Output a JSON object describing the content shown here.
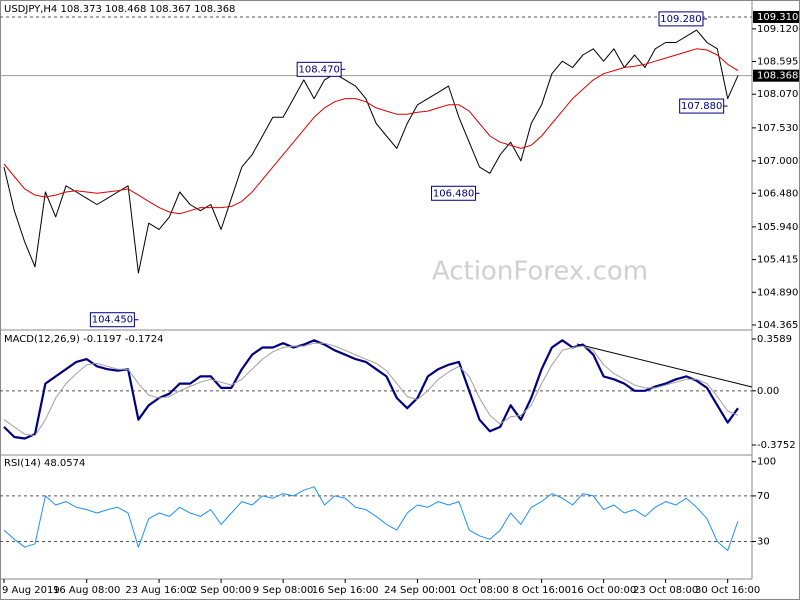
{
  "chart_data": [
    {
      "type": "line",
      "title": "USDJPY,H4  108.373 108.468 108.367 108.368",
      "watermark": "ActionForex.com",
      "ylim": [
        104.317,
        109.551
      ],
      "yticks": [
        {
          "value": 109.12,
          "label": "109.120"
        },
        108.595,
        {
          "value": 108.07,
          "label": "108.070"
        },
        {
          "value": 107.53,
          "label": "107.530"
        },
        {
          "value": 107,
          "label": "107.000"
        },
        {
          "value": 106.48,
          "label": "106.480"
        },
        {
          "value": 105.94,
          "label": "105.940"
        },
        105.415,
        {
          "value": 104.89,
          "label": "104.890"
        },
        104.365
      ],
      "levels": [
        {
          "value": 109.31,
          "label": "109.310",
          "dashed": true
        },
        {
          "value": 108.368,
          "label": "108.368",
          "dashed": false
        }
      ],
      "annotations": [
        {
          "x": 33,
          "value": 108.47,
          "label": "108.470"
        },
        {
          "x": 13,
          "value": 104.45,
          "label": "104.450"
        },
        {
          "x": 46,
          "value": 106.48,
          "label": "106.480"
        },
        {
          "x": 68,
          "value": 109.28,
          "label": "109.280"
        },
        {
          "x": 70,
          "value": 107.88,
          "label": "107.880"
        }
      ],
      "series": [
        {
          "color": "#000000",
          "width": 1,
          "values": [
            106.9,
            106.2,
            105.7,
            105.3,
            106.5,
            106.1,
            106.6,
            106.5,
            106.4,
            106.3,
            106.4,
            106.5,
            106.6,
            105.2,
            106.0,
            105.9,
            106.1,
            106.5,
            106.3,
            106.2,
            106.3,
            105.9,
            106.4,
            106.9,
            107.1,
            107.4,
            107.7,
            107.7,
            108.0,
            108.3,
            108.0,
            108.3,
            108.4,
            108.3,
            108.2,
            108.0,
            107.6,
            107.4,
            107.2,
            107.6,
            107.9,
            108.0,
            108.1,
            108.2,
            107.7,
            107.3,
            106.9,
            106.8,
            107.1,
            107.3,
            107.0,
            107.6,
            107.9,
            108.4,
            108.6,
            108.5,
            108.7,
            108.8,
            108.6,
            108.8,
            108.5,
            108.7,
            108.5,
            108.8,
            108.9,
            108.9,
            109.0,
            109.1,
            108.9,
            108.8,
            108.0,
            108.37
          ]
        },
        {
          "color": "#e00000",
          "width": 1,
          "values": [
            106.95,
            106.75,
            106.55,
            106.45,
            106.42,
            106.45,
            106.5,
            106.52,
            106.5,
            106.48,
            106.5,
            106.52,
            106.55,
            106.45,
            106.35,
            106.25,
            106.18,
            106.15,
            106.2,
            106.25,
            106.25,
            106.25,
            106.27,
            106.35,
            106.5,
            106.7,
            106.9,
            107.1,
            107.3,
            107.5,
            107.7,
            107.85,
            107.95,
            108.0,
            108.0,
            107.95,
            107.85,
            107.8,
            107.75,
            107.75,
            107.78,
            107.8,
            107.85,
            107.9,
            107.9,
            107.8,
            107.6,
            107.4,
            107.3,
            107.25,
            107.2,
            107.25,
            107.4,
            107.6,
            107.8,
            108.0,
            108.15,
            108.3,
            108.4,
            108.45,
            108.5,
            108.52,
            108.55,
            108.6,
            108.65,
            108.7,
            108.75,
            108.8,
            108.78,
            108.7,
            108.55,
            108.45
          ]
        }
      ]
    },
    {
      "type": "line",
      "title": "MACD(12,26,9) -0.1197 -0.1724",
      "ylim": [
        -0.4375,
        0.4074
      ],
      "yticks": [
        0.3589,
        {
          "value": 0,
          "label": "0.00"
        },
        -0.3752
      ],
      "levels": [
        0
      ],
      "series": [
        {
          "color": "#000080",
          "width": 2.2,
          "values": [
            -0.25,
            -0.32,
            -0.33,
            -0.3,
            0.05,
            0.1,
            0.15,
            0.2,
            0.22,
            0.17,
            0.15,
            0.14,
            0.15,
            -0.2,
            -0.1,
            -0.05,
            -0.02,
            0.05,
            0.05,
            0.1,
            0.1,
            0.02,
            0.02,
            0.15,
            0.25,
            0.3,
            0.3,
            0.33,
            0.3,
            0.32,
            0.35,
            0.32,
            0.28,
            0.25,
            0.22,
            0.2,
            0.15,
            0.1,
            -0.05,
            -0.12,
            -0.05,
            0.1,
            0.15,
            0.18,
            0.2,
            0.0,
            -0.2,
            -0.28,
            -0.25,
            -0.1,
            -0.2,
            -0.05,
            0.15,
            0.3,
            0.35,
            0.3,
            0.32,
            0.25,
            0.1,
            0.08,
            0.05,
            0.0,
            0.0,
            0.03,
            0.05,
            0.08,
            0.1,
            0.07,
            0.02,
            -0.1,
            -0.22,
            -0.12
          ]
        },
        {
          "color": "#a0a0a0",
          "width": 1,
          "values": [
            -0.2,
            -0.25,
            -0.3,
            -0.31,
            -0.2,
            -0.05,
            0.05,
            0.12,
            0.18,
            0.19,
            0.17,
            0.15,
            0.15,
            0.05,
            -0.03,
            -0.05,
            -0.04,
            0.0,
            0.03,
            0.06,
            0.08,
            0.06,
            0.04,
            0.08,
            0.15,
            0.22,
            0.27,
            0.3,
            0.31,
            0.31,
            0.33,
            0.33,
            0.31,
            0.28,
            0.25,
            0.22,
            0.19,
            0.14,
            0.05,
            -0.04,
            -0.06,
            0.0,
            0.08,
            0.13,
            0.17,
            0.1,
            -0.05,
            -0.17,
            -0.23,
            -0.18,
            -0.17,
            -0.1,
            0.05,
            0.18,
            0.28,
            0.3,
            0.31,
            0.28,
            0.18,
            0.12,
            0.08,
            0.04,
            0.02,
            0.02,
            0.04,
            0.06,
            0.08,
            0.08,
            0.05,
            -0.04,
            -0.14,
            -0.17
          ]
        }
      ]
    },
    {
      "type": "line",
      "title": "RSI(14) 48.0574",
      "ylim": [
        -2,
        105
      ],
      "yticks": [
        100,
        70,
        30
      ],
      "levels": [
        70,
        30
      ],
      "categories": [
        "9 Aug 2019",
        null,
        null,
        null,
        null,
        null,
        null,
        null,
        "16 Aug 08:00",
        null,
        null,
        null,
        null,
        null,
        null,
        "23 Aug 16:00",
        null,
        null,
        null,
        null,
        null,
        "2 Sep 00:00",
        null,
        null,
        null,
        null,
        null,
        "9 Sep 08:00",
        null,
        null,
        null,
        null,
        null,
        "16 Sep 16:00",
        null,
        null,
        null,
        null,
        null,
        null,
        "24 Sep 00:00",
        null,
        null,
        null,
        null,
        null,
        "1 Oct 08:00",
        null,
        null,
        null,
        null,
        null,
        "8 Oct 16:00",
        null,
        null,
        null,
        null,
        null,
        "16 Oct 00:00",
        null,
        null,
        null,
        null,
        null,
        "23 Oct 08:00",
        null,
        null,
        null,
        null,
        null,
        "30 Oct 16:00",
        null
      ],
      "series": [
        {
          "color": "#1e90ff",
          "width": 1,
          "values": [
            40,
            32,
            25,
            28,
            70,
            62,
            65,
            60,
            58,
            55,
            58,
            60,
            55,
            25,
            50,
            55,
            52,
            60,
            55,
            52,
            58,
            45,
            55,
            65,
            62,
            70,
            68,
            72,
            70,
            75,
            78,
            62,
            70,
            68,
            60,
            58,
            52,
            45,
            40,
            55,
            62,
            60,
            65,
            62,
            65,
            40,
            35,
            32,
            40,
            55,
            45,
            60,
            65,
            72,
            68,
            62,
            72,
            70,
            58,
            62,
            55,
            58,
            52,
            60,
            65,
            62,
            68,
            60,
            50,
            30,
            22,
            48
          ]
        }
      ]
    }
  ]
}
